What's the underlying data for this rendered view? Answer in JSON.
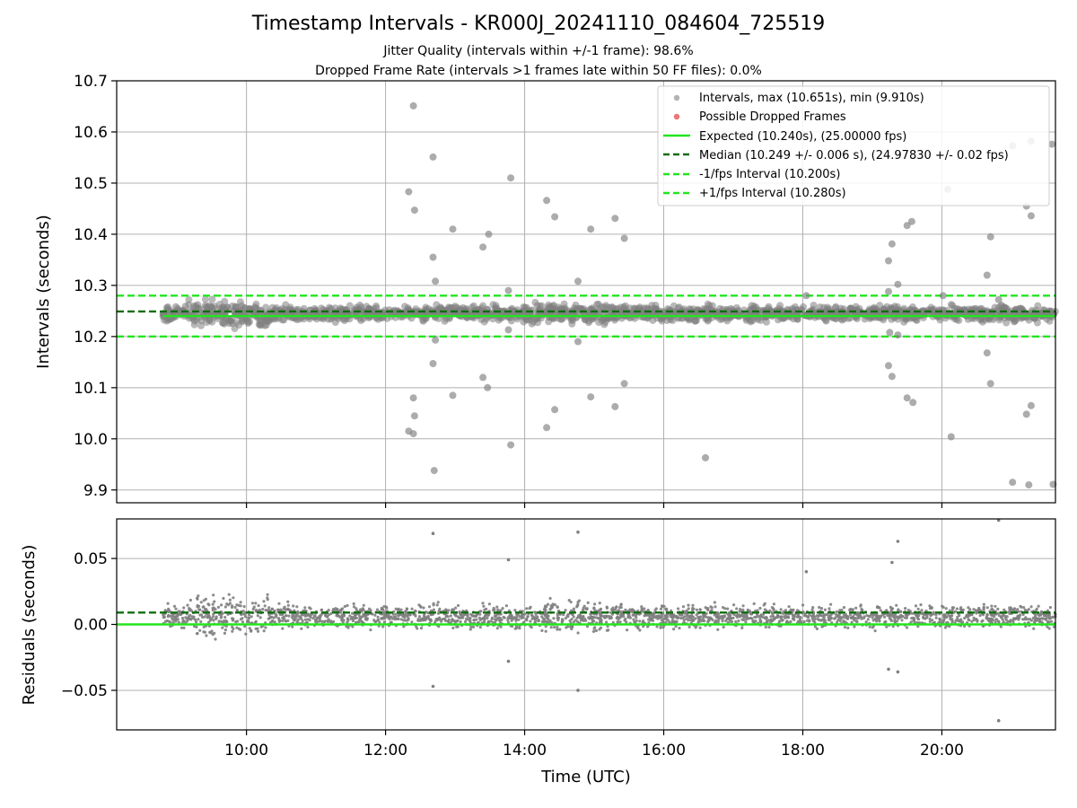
{
  "chart_data": [
    {
      "type": "scatter",
      "title": "Timestamp Intervals - KR000J_20241110_084604_725519",
      "subtitle_lines": [
        "Jitter Quality (intervals within +/-1 frame): 98.6%",
        "Dropped Frame Rate (intervals >1 frames late within 50 FF files): 0.0%"
      ],
      "xlabel": "",
      "ylabel": "Intervals (seconds)",
      "xlim": [
        "08:08",
        "21:38"
      ],
      "ylim": [
        9.875,
        10.7
      ],
      "yticks": [
        "9.9",
        "10.0",
        "10.1",
        "10.2",
        "10.3",
        "10.4",
        "10.5",
        "10.6",
        "10.7"
      ],
      "grid": true,
      "legend_position": "top-right",
      "legend": [
        {
          "label": "Intervals, max (10.651s), min (9.910s)",
          "marker": "dot",
          "color": "#808080"
        },
        {
          "label": "Possible Dropped Frames",
          "marker": "dot",
          "color": "#e8474a"
        },
        {
          "label": "Expected (10.240s), (25.00000 fps)",
          "marker": "solid",
          "color": "#22e61e"
        },
        {
          "label": "Median (10.249 +/- 0.006 s), (24.97830 +/- 0.02 fps)",
          "marker": "dashed",
          "color": "#0e6e0e"
        },
        {
          "label": "-1/fps Interval (10.200s)",
          "marker": "dashed",
          "color": "#22e61e"
        },
        {
          "label": "+1/fps Interval (10.280s)",
          "marker": "dashed",
          "color": "#22e61e"
        }
      ],
      "reference_lines": {
        "expected": 10.24,
        "median": 10.249,
        "minus_1_fps": 10.2,
        "plus_1_fps": 10.28
      },
      "dense_band": {
        "x_start": "08:48",
        "x_end": "21:38",
        "y_center": 10.245,
        "y_spread": 0.02
      },
      "outliers": [
        [
          "12:20",
          10.483
        ],
        [
          "12:24",
          10.651
        ],
        [
          "12:25",
          10.447
        ],
        [
          "12:24",
          10.08
        ],
        [
          "12:25",
          10.045
        ],
        [
          "12:20",
          10.015
        ],
        [
          "12:24",
          10.01
        ],
        [
          "12:41",
          10.551
        ],
        [
          "12:41",
          10.355
        ],
        [
          "12:43",
          10.308
        ],
        [
          "12:43",
          10.193
        ],
        [
          "12:41",
          10.147
        ],
        [
          "12:42",
          9.938
        ],
        [
          "12:58",
          10.41
        ],
        [
          "12:58",
          10.085
        ],
        [
          "13:24",
          10.375
        ],
        [
          "13:29",
          10.4
        ],
        [
          "13:24",
          10.12
        ],
        [
          "13:28",
          10.1
        ],
        [
          "13:48",
          10.51
        ],
        [
          "13:46",
          10.29
        ],
        [
          "13:46",
          10.213
        ],
        [
          "13:48",
          9.988
        ],
        [
          "14:19",
          10.466
        ],
        [
          "14:26",
          10.434
        ],
        [
          "14:26",
          10.057
        ],
        [
          "14:19",
          10.022
        ],
        [
          "14:46",
          10.308
        ],
        [
          "14:46",
          10.19
        ],
        [
          "14:57",
          10.41
        ],
        [
          "14:57",
          10.082
        ],
        [
          "15:18",
          10.431
        ],
        [
          "15:26",
          10.392
        ],
        [
          "15:26",
          10.108
        ],
        [
          "15:18",
          10.063
        ],
        [
          "16:36",
          9.963
        ],
        [
          "18:03",
          10.28
        ],
        [
          "19:14",
          10.348
        ],
        [
          "19:17",
          10.381
        ],
        [
          "19:22",
          10.302
        ],
        [
          "19:14",
          10.288
        ],
        [
          "19:15",
          10.208
        ],
        [
          "19:22",
          10.203
        ],
        [
          "19:14",
          10.143
        ],
        [
          "19:17",
          10.122
        ],
        [
          "19:30",
          10.417
        ],
        [
          "19:34",
          10.425
        ],
        [
          "19:30",
          10.08
        ],
        [
          "19:35",
          10.071
        ],
        [
          "20:05",
          10.488
        ],
        [
          "20:08",
          10.004
        ],
        [
          "20:01",
          10.28
        ],
        [
          "20:39",
          10.32
        ],
        [
          "20:42",
          10.395
        ],
        [
          "20:39",
          10.168
        ],
        [
          "20:42",
          10.108
        ],
        [
          "20:49",
          10.272
        ],
        [
          "21:01",
          10.573
        ],
        [
          "21:01",
          9.915
        ],
        [
          "21:13",
          10.455
        ],
        [
          "21:17",
          10.436
        ],
        [
          "21:13",
          10.048
        ],
        [
          "21:17",
          10.065
        ],
        [
          "21:17",
          10.582
        ],
        [
          "21:15",
          9.91
        ],
        [
          "21:35",
          10.576
        ],
        [
          "21:36",
          9.911
        ]
      ]
    },
    {
      "type": "scatter",
      "xlabel": "Time (UTC)",
      "ylabel": "Residuals (seconds)",
      "xlim": [
        "08:08",
        "21:38"
      ],
      "ylim": [
        -0.08,
        0.08
      ],
      "yticks": [
        "−0.05",
        "0.00",
        "0.05"
      ],
      "xticks": [
        "10:00",
        "12:00",
        "14:00",
        "16:00",
        "18:00",
        "20:00"
      ],
      "grid": true,
      "reference_lines": {
        "expected": 0.0,
        "median": 0.009
      },
      "dense_band": {
        "x_start": "08:48",
        "x_end": "21:38",
        "y_center": 0.006,
        "y_spread": 0.012
      },
      "outliers": [
        [
          "12:41",
          0.069
        ],
        [
          "12:41",
          -0.047
        ],
        [
          "13:46",
          0.049
        ],
        [
          "13:46",
          -0.028
        ],
        [
          "14:46",
          0.07
        ],
        [
          "14:46",
          -0.05
        ],
        [
          "18:03",
          0.04
        ],
        [
          "19:17",
          0.047
        ],
        [
          "19:14",
          -0.034
        ],
        [
          "19:22",
          -0.036
        ],
        [
          "19:22",
          0.063
        ],
        [
          "20:49",
          0.079
        ],
        [
          "20:49",
          -0.073
        ]
      ]
    }
  ],
  "colors": {
    "scatter": "#808080",
    "dropped": "#e8474a",
    "expected": "#22e61e",
    "median": "#0e6e0e",
    "grid": "#b0b0b0"
  }
}
